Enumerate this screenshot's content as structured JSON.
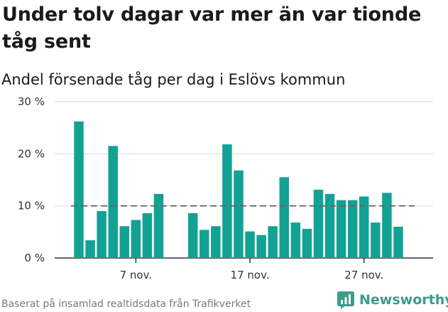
{
  "title": "Under tolv dagar var mer än var tionde tåg sent",
  "subtitle": "Andel försenade tåg per dag i Eslövs kommun",
  "footer": "Baserat på insamlad realtidsdata från Trafikverket",
  "brand": {
    "name": "Newsworthy",
    "logo_icon": "newsworthy-logo-icon",
    "color": "#3c9b8b"
  },
  "colors": {
    "bar": "#12a294",
    "grid": "#dddddd",
    "reference_line": "#666666",
    "axis": "#333333"
  },
  "chart_data": {
    "type": "bar",
    "title": "Andel försenade tåg per dag i Eslövs kommun",
    "xlabel": "",
    "ylabel": "",
    "x_unit": "day of November",
    "days": [
      2,
      3,
      4,
      5,
      6,
      7,
      8,
      9,
      10,
      11,
      12,
      13,
      14,
      15,
      16,
      17,
      18,
      19,
      20,
      21,
      22,
      23,
      24,
      25,
      26,
      27,
      28,
      29,
      30
    ],
    "values": [
      26.2,
      3.4,
      9.0,
      21.5,
      6.1,
      7.3,
      8.6,
      12.3,
      null,
      null,
      8.6,
      5.4,
      6.1,
      21.8,
      16.8,
      5.1,
      4.4,
      6.1,
      15.5,
      6.8,
      5.6,
      13.1,
      12.3,
      11.1,
      11.1,
      11.8,
      6.8,
      12.5,
      6.0
    ],
    "reference_line": 10,
    "ylim": [
      0,
      30
    ],
    "yticks": [
      0,
      10,
      20,
      30
    ],
    "ytick_labels": [
      "0 %",
      "10 %",
      "20 %",
      "30 %"
    ],
    "xticks": [
      7,
      17,
      27
    ],
    "xtick_labels": [
      "7 nov.",
      "17 nov.",
      "27 nov."
    ],
    "grid": true
  }
}
